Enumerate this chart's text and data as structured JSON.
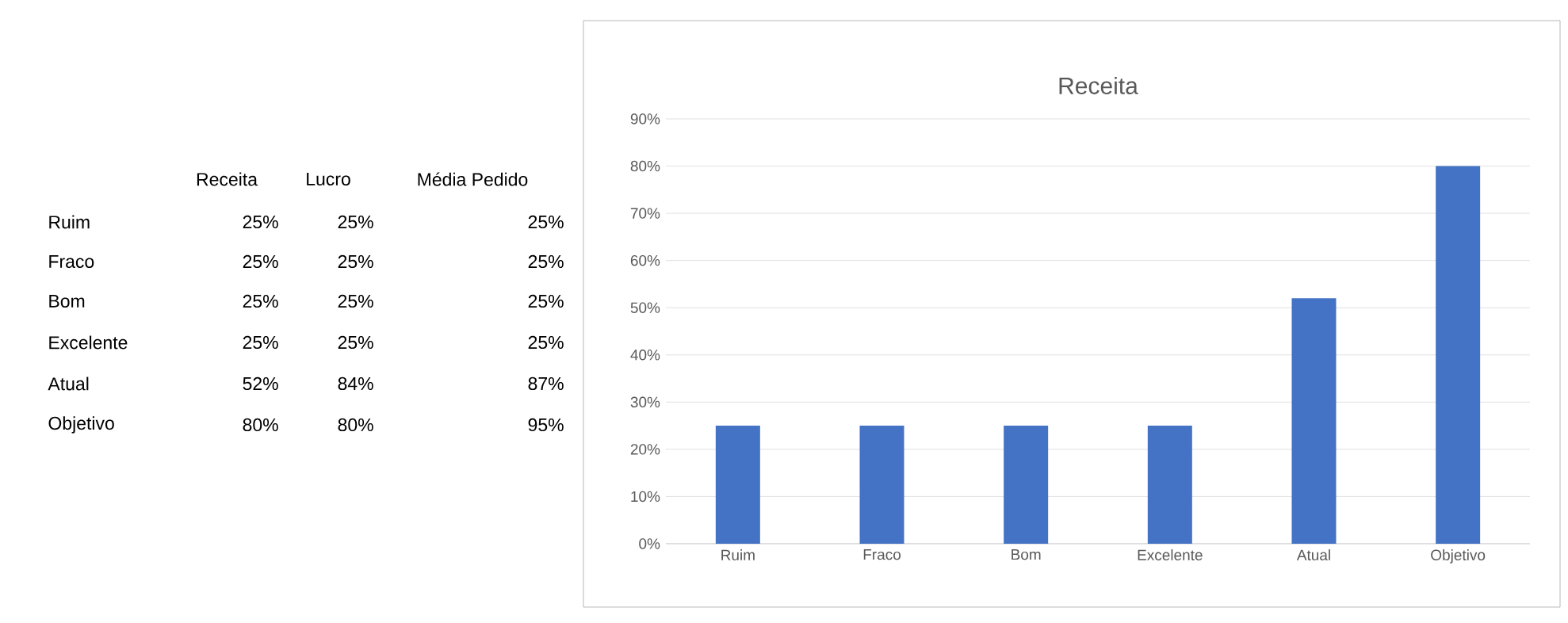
{
  "chart_data": [
    {
      "type": "other",
      "annotations": [
        "Receita",
        "Lucro",
        "Média Pedido",
        "Ruim",
        "25%",
        "25%",
        "25%",
        "Fraco",
        "25%",
        "25%",
        "25%",
        "Bom",
        "25%",
        "25%",
        "25%",
        "Excelente",
        "25%",
        "25%",
        "25%",
        "Atual",
        "52%",
        "84%",
        "87%",
        "Objetivo",
        "80%",
        "80%",
        "95%"
      ]
    },
    {
      "type": "bar",
      "title": "Receita",
      "categories": [
        "Ruim",
        "Fraco",
        "Bom",
        "Excelente",
        "Atual",
        "Objetivo"
      ],
      "values": [
        25,
        25,
        25,
        25,
        52,
        80
      ],
      "color": "#4472c4",
      "ylim": [
        0,
        90
      ],
      "yticks": [
        {
          "value": 0,
          "label": "0%"
        },
        {
          "value": 10,
          "label": "10%"
        },
        {
          "value": 20,
          "label": "20%"
        },
        {
          "value": 30,
          "label": "30%"
        },
        {
          "value": 40,
          "label": "40%"
        },
        {
          "value": 50,
          "label": "50%"
        },
        {
          "value": 60,
          "label": "60%"
        },
        {
          "value": 70,
          "label": "70%"
        },
        {
          "value": 80,
          "label": "80%"
        },
        {
          "value": 90,
          "label": "90%"
        }
      ],
      "grid": "y"
    }
  ]
}
